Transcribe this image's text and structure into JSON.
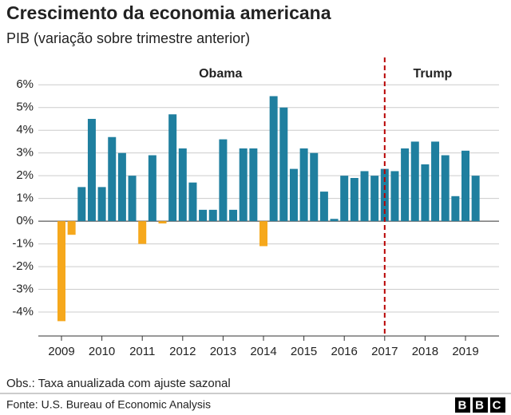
{
  "chart_data": {
    "type": "bar",
    "title": "Crescimento da economia americana",
    "subtitle": "PIB (variação sobre trimestre anterior)",
    "note": "Obs.: Taxa anualizada com ajuste sazonal",
    "source": "Fonte: U.S. Bureau of Economic Analysis",
    "logo": "BBC",
    "categories": [
      "2009",
      null,
      null,
      null,
      "2010",
      null,
      null,
      null,
      "2011",
      null,
      null,
      null,
      "2012",
      null,
      null,
      null,
      "2013",
      null,
      null,
      null,
      "2014",
      null,
      null,
      null,
      "2015",
      null,
      null,
      null,
      "2016",
      null,
      null,
      null,
      "2017",
      null,
      null,
      null,
      "2018",
      null,
      null,
      null,
      "2019",
      null
    ],
    "values": [
      -4.4,
      -0.6,
      1.5,
      4.5,
      1.5,
      3.7,
      3.0,
      2.0,
      -1.0,
      2.9,
      -0.1,
      4.7,
      3.2,
      1.7,
      0.5,
      0.5,
      3.6,
      0.5,
      3.2,
      3.2,
      -1.1,
      5.5,
      5.0,
      2.3,
      3.2,
      3.0,
      1.3,
      0.1,
      2.0,
      1.9,
      2.2,
      2.0,
      2.3,
      2.2,
      3.2,
      3.5,
      2.5,
      3.5,
      2.9,
      1.1,
      3.1,
      2.0
    ],
    "color": "#1f7f9f",
    "negative_color": "#f6a81c",
    "ylim": [
      -5,
      6.5
    ],
    "yticks": [
      {
        "value": -4,
        "label": "-4%"
      },
      {
        "value": -3,
        "label": "-3%"
      },
      {
        "value": -2,
        "label": "-2%"
      },
      {
        "value": -1,
        "label": "-1%"
      },
      {
        "value": 0,
        "label": "0%"
      },
      {
        "value": 1,
        "label": "1%"
      },
      {
        "value": 2,
        "label": "2%"
      },
      {
        "value": 3,
        "label": "3%"
      },
      {
        "value": 4,
        "label": "4%"
      },
      {
        "value": 5,
        "label": "5%"
      },
      {
        "value": 6,
        "label": "6%"
      }
    ],
    "grid": true,
    "vline": "2017",
    "vline_color": "#b80000",
    "annotations": [
      "Obama",
      "Trump"
    ]
  }
}
